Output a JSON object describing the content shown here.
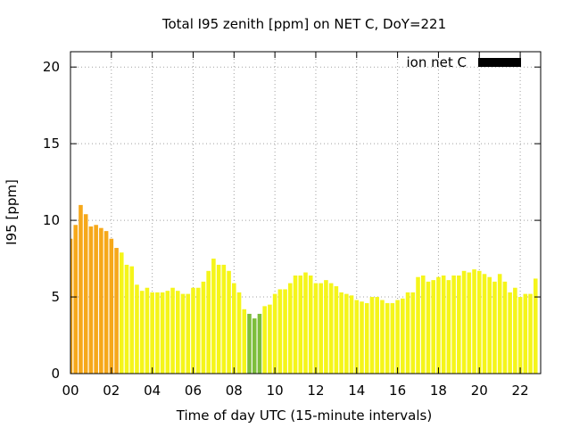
{
  "chart_data": {
    "type": "bar",
    "title": "Total I95 zenith [ppm] on NET C, DoY=221",
    "xlabel": "Time of day UTC (15-minute intervals)",
    "ylabel": "I95 [ppm]",
    "xlim": [
      0,
      23
    ],
    "ylim": [
      0,
      21
    ],
    "x_ticks": [
      "00",
      "02",
      "04",
      "06",
      "08",
      "10",
      "12",
      "14",
      "16",
      "18",
      "20",
      "22"
    ],
    "y_ticks": [
      "0",
      "5",
      "10",
      "15",
      "20"
    ],
    "grid": true,
    "legend": {
      "label": "ion net C",
      "color": "#000000",
      "placement": "top-right"
    },
    "bin_hours": 0.25,
    "colors": {
      "orange": "#f6a81a",
      "yellow": "#f5f51a",
      "green": "#7dbe3c"
    },
    "values": [
      8.8,
      9.7,
      11.0,
      10.4,
      9.6,
      9.7,
      9.5,
      9.3,
      8.8,
      8.2,
      7.9,
      7.1,
      7.0,
      5.8,
      5.4,
      5.6,
      5.3,
      5.3,
      5.3,
      5.4,
      5.6,
      5.4,
      5.2,
      5.2,
      5.6,
      5.6,
      6.0,
      6.7,
      7.5,
      7.1,
      7.1,
      6.7,
      5.9,
      5.3,
      4.2,
      3.9,
      3.6,
      3.9,
      4.4,
      4.5,
      5.2,
      5.5,
      5.5,
      5.9,
      6.4,
      6.4,
      6.6,
      6.4,
      5.9,
      5.9,
      6.1,
      5.9,
      5.7,
      5.3,
      5.2,
      5.1,
      4.8,
      4.7,
      4.6,
      5.0,
      5.0,
      4.8,
      4.6,
      4.6,
      4.8,
      4.9,
      5.3,
      5.3,
      6.3,
      6.4,
      6.0,
      6.1,
      6.3,
      6.4,
      6.1,
      6.4,
      6.4,
      6.7,
      6.6,
      6.8,
      6.7,
      6.5,
      6.3,
      6.0,
      6.5,
      6.0,
      5.3,
      5.6,
      5.0,
      5.2,
      5.2,
      6.2
    ],
    "bar_colors": [
      "orange",
      "orange",
      "orange",
      "orange",
      "orange",
      "orange",
      "orange",
      "orange",
      "orange",
      "orange",
      "yellow",
      "yellow",
      "yellow",
      "yellow",
      "yellow",
      "yellow",
      "yellow",
      "yellow",
      "yellow",
      "yellow",
      "yellow",
      "yellow",
      "yellow",
      "yellow",
      "yellow",
      "yellow",
      "yellow",
      "yellow",
      "yellow",
      "yellow",
      "yellow",
      "yellow",
      "yellow",
      "yellow",
      "yellow",
      "green",
      "green",
      "green",
      "yellow",
      "yellow",
      "yellow",
      "yellow",
      "yellow",
      "yellow",
      "yellow",
      "yellow",
      "yellow",
      "yellow",
      "yellow",
      "yellow",
      "yellow",
      "yellow",
      "yellow",
      "yellow",
      "yellow",
      "yellow",
      "yellow",
      "yellow",
      "yellow",
      "yellow",
      "yellow",
      "yellow",
      "yellow",
      "yellow",
      "yellow",
      "yellow",
      "yellow",
      "yellow",
      "yellow",
      "yellow",
      "yellow",
      "yellow",
      "yellow",
      "yellow",
      "yellow",
      "yellow",
      "yellow",
      "yellow",
      "yellow",
      "yellow",
      "yellow",
      "yellow",
      "yellow",
      "yellow",
      "yellow",
      "yellow",
      "yellow",
      "yellow",
      "yellow",
      "yellow",
      "yellow",
      "yellow"
    ]
  }
}
